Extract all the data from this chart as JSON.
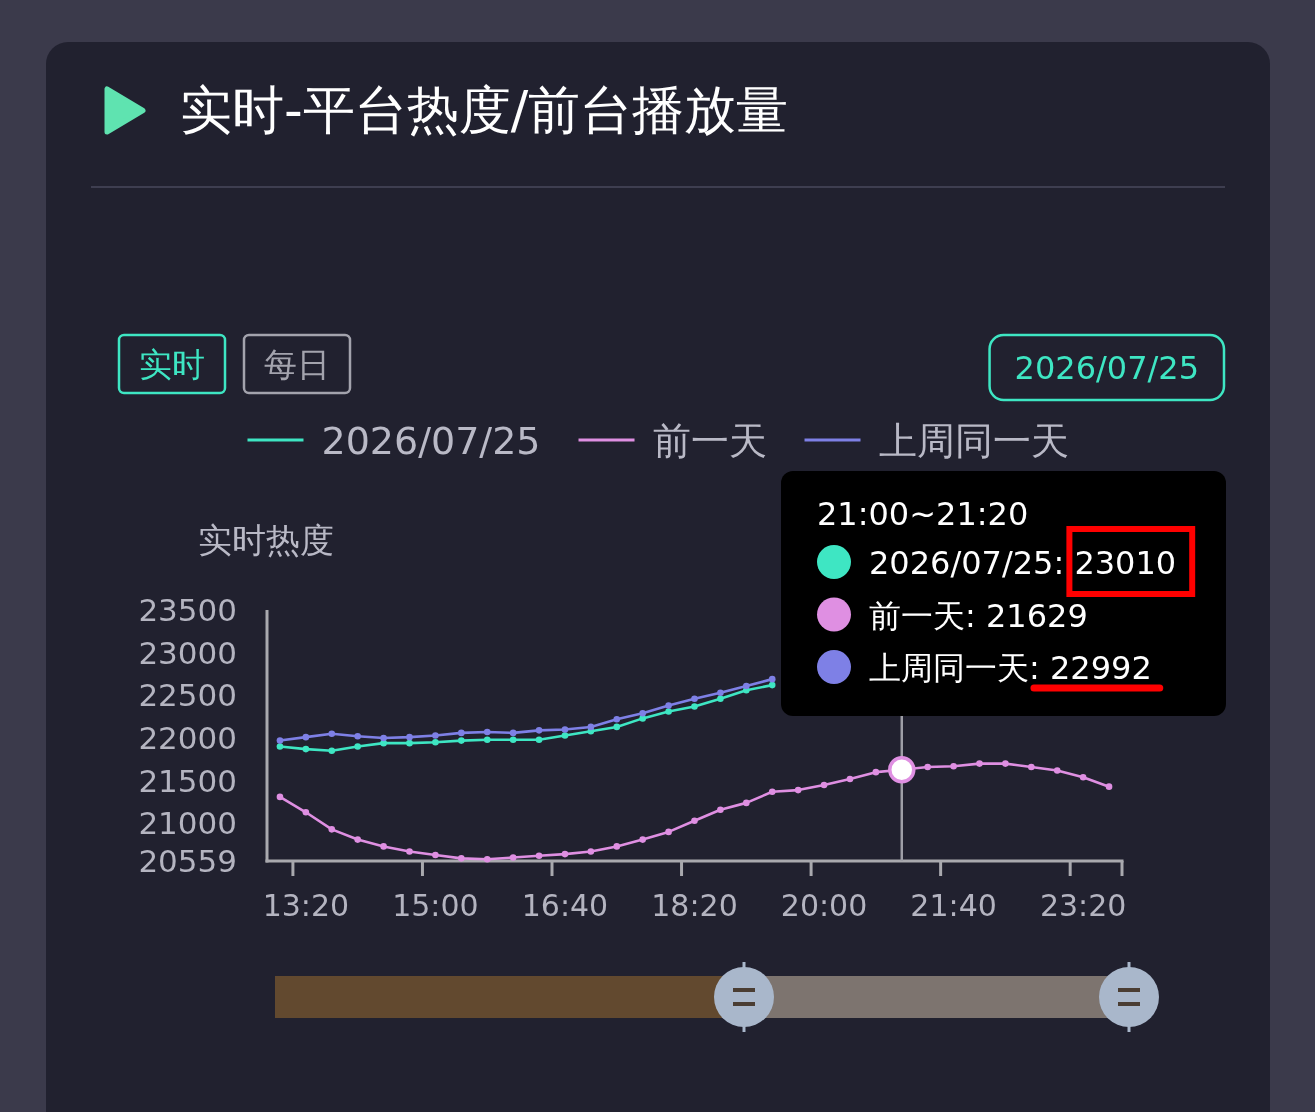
{
  "chart_data": {
    "type": "line",
    "title": "实时-平台热度/前台播放量",
    "ylabel": "实时热度",
    "categories": [
      null,
      "13:20",
      null,
      null,
      null,
      null,
      "15:00",
      null,
      null,
      null,
      null,
      "16:40",
      null,
      null,
      null,
      null,
      "18:20",
      null,
      null,
      null,
      null,
      "20:00",
      null,
      null,
      null,
      null,
      "21:40",
      null,
      null,
      null,
      null,
      "23:20",
      null
    ],
    "series": [
      {
        "name": "2026/07/25",
        "color": "#3ee6c3",
        "values": [
          21900,
          21870,
          21850,
          21900,
          21940,
          21940,
          21950,
          21970,
          21980,
          21980,
          21980,
          22030,
          22080,
          22130,
          22230,
          22310,
          22370,
          22460,
          22560,
          22620,
          null,
          null,
          null,
          null,
          null,
          null,
          null,
          null,
          null,
          null,
          null,
          null,
          null
        ]
      },
      {
        "name": "前一天",
        "color": "#df8fe2",
        "values": [
          21310,
          21130,
          20930,
          20810,
          20730,
          20670,
          20630,
          20590,
          20580,
          20600,
          20620,
          20640,
          20670,
          20730,
          20810,
          20900,
          21030,
          21160,
          21240,
          21370,
          21390,
          21450,
          21520,
          21600,
          21629,
          21660,
          21670,
          21700,
          21700,
          21660,
          21620,
          21540,
          21430
        ]
      },
      {
        "name": "上周同一天",
        "color": "#7e80e6",
        "values": [
          21970,
          22010,
          22050,
          22020,
          22000,
          22010,
          22030,
          22060,
          22070,
          22060,
          22090,
          22100,
          22130,
          22220,
          22290,
          22380,
          22460,
          22530,
          22610,
          22690,
          null,
          null,
          null,
          null,
          null,
          null,
          null,
          null,
          null,
          null,
          null,
          null,
          null
        ]
      }
    ],
    "ylim": [
      20559,
      23500
    ],
    "yticks": [
      20559,
      21000,
      21500,
      22000,
      22500,
      23000,
      23500
    ],
    "legend": "top",
    "marker": "circle",
    "annotations": [
      "实时",
      "每日",
      "2026/07/25",
      "21:00~21:20",
      "2026/07/25: 23010",
      "前一天: 21629",
      "上周同一天: 22992"
    ]
  }
}
